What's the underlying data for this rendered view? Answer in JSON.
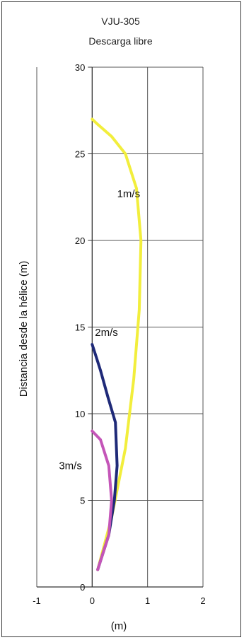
{
  "chart_data": {
    "type": "line",
    "title": "VJU-305",
    "subtitle": "Descarga libre",
    "xlabel": "(m)",
    "ylabel": "Distancia desde la hélice (m)",
    "xlim": [
      -1,
      2
    ],
    "ylim": [
      0,
      30
    ],
    "x_ticks": [
      "-1",
      "0",
      "1",
      "2"
    ],
    "y_ticks": [
      "0",
      "5",
      "10",
      "15",
      "20",
      "25",
      "30"
    ],
    "grid": true,
    "series": [
      {
        "name": "1m/s",
        "color": "#f2ee3c",
        "points": [
          [
            0.1,
            1
          ],
          [
            0.35,
            4
          ],
          [
            0.6,
            8
          ],
          [
            0.75,
            12
          ],
          [
            0.85,
            16
          ],
          [
            0.88,
            20
          ],
          [
            0.8,
            23
          ],
          [
            0.6,
            25
          ],
          [
            0.35,
            26
          ],
          [
            0.1,
            26.7
          ],
          [
            0.0,
            27
          ]
        ]
      },
      {
        "name": "2m/s",
        "color": "#1f2a78",
        "points": [
          [
            0.1,
            1
          ],
          [
            0.3,
            3
          ],
          [
            0.4,
            5
          ],
          [
            0.45,
            7
          ],
          [
            0.42,
            9.5
          ],
          [
            0.28,
            11
          ],
          [
            0.15,
            12.5
          ],
          [
            0.05,
            13.5
          ],
          [
            0.0,
            14
          ]
        ]
      },
      {
        "name": "3m/s",
        "color": "#c455b8",
        "points": [
          [
            0.1,
            1
          ],
          [
            0.3,
            3
          ],
          [
            0.35,
            5
          ],
          [
            0.3,
            7
          ],
          [
            0.15,
            8.5
          ],
          [
            0.0,
            9
          ]
        ]
      }
    ]
  }
}
